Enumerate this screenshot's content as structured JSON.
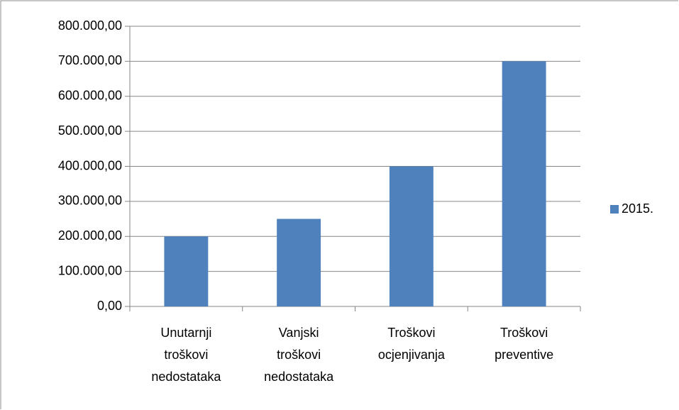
{
  "chart_data": {
    "type": "bar",
    "categories": [
      "Unutarnji troškovi nedostataka",
      "Vanjski troškovi nedostataka",
      "Troškovi ocjenjivanja",
      "Troškovi preventive"
    ],
    "series": [
      {
        "name": "2015.",
        "color": "#4f81bd",
        "values": [
          200000,
          250000,
          400000,
          700000
        ]
      }
    ],
    "ylim": [
      0,
      800000
    ],
    "yticks": [
      {
        "value": 0,
        "label": "0,00"
      },
      {
        "value": 100000,
        "label": "100.000,00"
      },
      {
        "value": 200000,
        "label": "200.000,00"
      },
      {
        "value": 300000,
        "label": "300.000,00"
      },
      {
        "value": 400000,
        "label": "400.000,00"
      },
      {
        "value": 500000,
        "label": "500.000,00"
      },
      {
        "value": 600000,
        "label": "600.000,00"
      },
      {
        "value": 700000,
        "label": "700.000,00"
      },
      {
        "value": 800000,
        "label": "800.000,00"
      }
    ],
    "grid": true,
    "legend": "right"
  }
}
